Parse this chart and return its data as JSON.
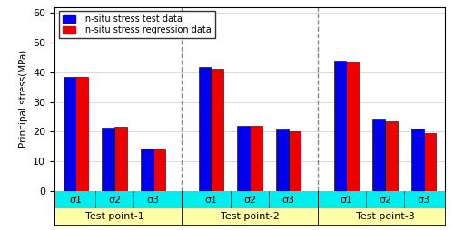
{
  "groups": [
    "Test point-1",
    "Test point-2",
    "Test point-3"
  ],
  "subgroups": [
    "σ1",
    "σ2",
    "σ3"
  ],
  "blue_values": [
    [
      38.5,
      21.5,
      14.5
    ],
    [
      41.8,
      22.0,
      20.7
    ],
    [
      44.0,
      24.5,
      21.0
    ]
  ],
  "red_values": [
    [
      38.5,
      21.8,
      14.2
    ],
    [
      41.3,
      22.0,
      20.0
    ],
    [
      43.5,
      23.5,
      19.5
    ]
  ],
  "blue_color": "#0000EE",
  "red_color": "#EE0000",
  "ylabel": "Principal stress(MPa)",
  "ylim": [
    0,
    62
  ],
  "yticks": [
    0,
    10,
    20,
    30,
    40,
    50,
    60
  ],
  "legend_blue": "In-situ stress test data",
  "legend_red": "In-situ stress regression data",
  "bar_width": 0.32,
  "sigma_bg_color": "#00EEEE",
  "group_bg_color": "#FFFFAA",
  "dashed_color": "#888888"
}
